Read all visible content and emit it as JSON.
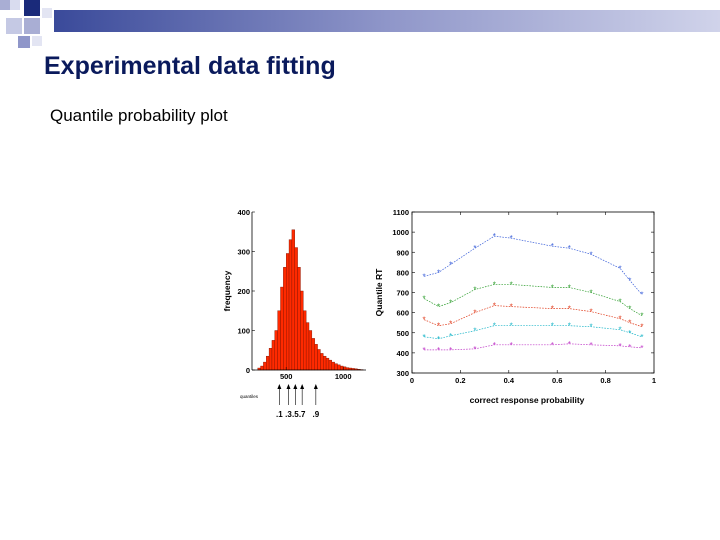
{
  "slide": {
    "title": "Experimental data fitting",
    "subtitle": "Quantile probability plot"
  },
  "colors": {
    "title": "#0a1a5c",
    "deco_dark": "#1a2a7a",
    "deco_light": "#a9aed4",
    "bar_fill": "#ff2a00",
    "bar_edge": "#7a1200"
  },
  "chart_data": [
    {
      "type": "bar",
      "title": "",
      "xlabel": "",
      "ylabel": "frequency",
      "ylim": [
        0,
        400
      ],
      "yticks": [
        0,
        100,
        200,
        300,
        400
      ],
      "xlim": [
        200,
        1200
      ],
      "xticks": [
        500,
        1000
      ],
      "bin_width": 25,
      "bin_starts": [
        250,
        275,
        300,
        325,
        350,
        375,
        400,
        425,
        450,
        475,
        500,
        525,
        550,
        575,
        600,
        625,
        650,
        675,
        700,
        725,
        750,
        775,
        800,
        825,
        850,
        875,
        900,
        925,
        950,
        975,
        1000,
        1025,
        1050,
        1075,
        1100,
        1125,
        1150
      ],
      "values": [
        5,
        10,
        20,
        35,
        55,
        75,
        100,
        150,
        210,
        260,
        295,
        330,
        355,
        310,
        260,
        200,
        150,
        120,
        100,
        80,
        65,
        52,
        42,
        35,
        30,
        25,
        20,
        16,
        13,
        10,
        8,
        6,
        5,
        4,
        3,
        2,
        1
      ],
      "annotation_label": "quantiles",
      "quantiles": [
        {
          "label": ".1",
          "value": 440
        },
        {
          "label": ".3",
          "value": 520
        },
        {
          "label": ".5",
          "value": 580
        },
        {
          "label": ".7",
          "value": 640
        },
        {
          "label": ".9",
          "value": 760
        }
      ]
    },
    {
      "type": "line",
      "title": "",
      "xlabel": "correct response probability",
      "ylabel": "Quantile RT",
      "xlim": [
        0,
        1
      ],
      "ylim": [
        300,
        1100
      ],
      "xticks": [
        0,
        0.2,
        0.4,
        0.6,
        0.8,
        1
      ],
      "xtick_labels": [
        "0",
        "0.2",
        "0.4",
        "0.6",
        "0.8",
        "1"
      ],
      "yticks": [
        300,
        400,
        500,
        600,
        700,
        800,
        900,
        1000,
        1100
      ],
      "x": [
        0.05,
        0.11,
        0.16,
        0.26,
        0.34,
        0.41,
        0.58,
        0.65,
        0.74,
        0.86,
        0.9,
        0.95
      ],
      "series": [
        {
          "color": "#3a5fd9",
          "values": [
            780,
            800,
            840,
            920,
            980,
            970,
            930,
            920,
            890,
            820,
            760,
            690
          ]
        },
        {
          "color": "#2e9e2e",
          "values": [
            670,
            630,
            650,
            715,
            740,
            740,
            725,
            725,
            700,
            655,
            620,
            585
          ]
        },
        {
          "color": "#e03a1a",
          "values": [
            565,
            535,
            545,
            600,
            635,
            630,
            620,
            620,
            605,
            570,
            550,
            530
          ]
        },
        {
          "color": "#1ab5c8",
          "values": [
            480,
            470,
            485,
            510,
            535,
            535,
            535,
            535,
            530,
            515,
            500,
            480
          ]
        },
        {
          "color": "#c03ac8",
          "values": [
            415,
            415,
            415,
            420,
            440,
            440,
            440,
            445,
            440,
            435,
            430,
            425
          ]
        }
      ]
    }
  ]
}
